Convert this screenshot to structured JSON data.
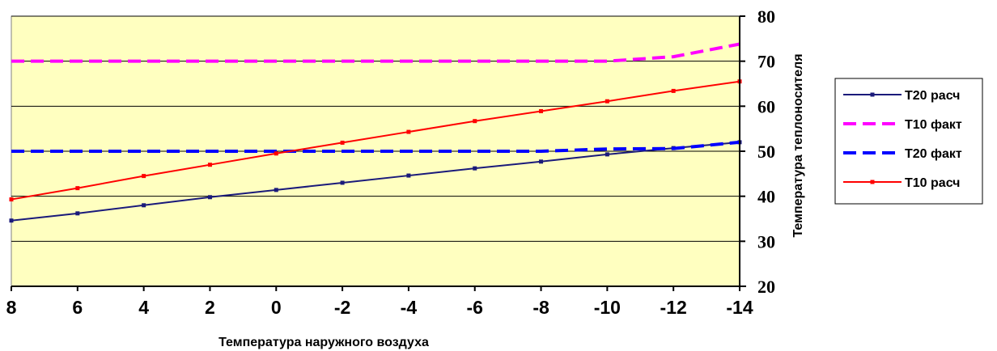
{
  "chart_data": {
    "type": "line",
    "title": "",
    "xlabel": "Температура наружного воздуха",
    "ylabel": "Температура теплоносителя",
    "x": [
      8,
      6,
      4,
      2,
      0,
      -2,
      -4,
      -6,
      -8,
      -10,
      -12,
      -14
    ],
    "x_tick_labels": [
      "8",
      "6",
      "4",
      "2",
      "0",
      "-2",
      "-4",
      "-6",
      "-8",
      "-10",
      "-12",
      "-14"
    ],
    "xlim": [
      8,
      -14
    ],
    "ylim": [
      20,
      80
    ],
    "y_ticks": [
      20,
      30,
      40,
      50,
      60,
      70,
      80
    ],
    "y_tick_labels": [
      "20",
      "30",
      "40",
      "50",
      "60",
      "70",
      "80"
    ],
    "y_axis_side": "right",
    "grid": "horizontal",
    "plot_background": "#FFFFC0",
    "legend_position": "right",
    "series": [
      {
        "name": "Т20 расч",
        "color": "#1A1A7A",
        "style": "solid-markers",
        "values": [
          34.6,
          36.2,
          38.0,
          39.8,
          41.4,
          43.0,
          44.6,
          46.2,
          47.7,
          49.3,
          50.7,
          52.0
        ]
      },
      {
        "name": "Т10 факт",
        "color": "#FF00FF",
        "style": "dashed",
        "values": [
          70,
          70,
          70,
          70,
          70,
          70,
          70,
          70,
          70,
          70,
          71,
          73.8
        ]
      },
      {
        "name": "Т20 факт",
        "color": "#0000FF",
        "style": "dashed",
        "values": [
          50,
          50,
          50,
          50,
          50,
          50,
          50,
          50,
          50,
          50.5,
          50.6,
          52.0
        ]
      },
      {
        "name": "Т10 расч",
        "color": "#FF0000",
        "style": "solid-markers",
        "values": [
          39.3,
          41.8,
          44.5,
          47.0,
          49.5,
          51.9,
          54.3,
          56.7,
          58.9,
          61.1,
          63.4,
          65.5
        ]
      }
    ]
  }
}
